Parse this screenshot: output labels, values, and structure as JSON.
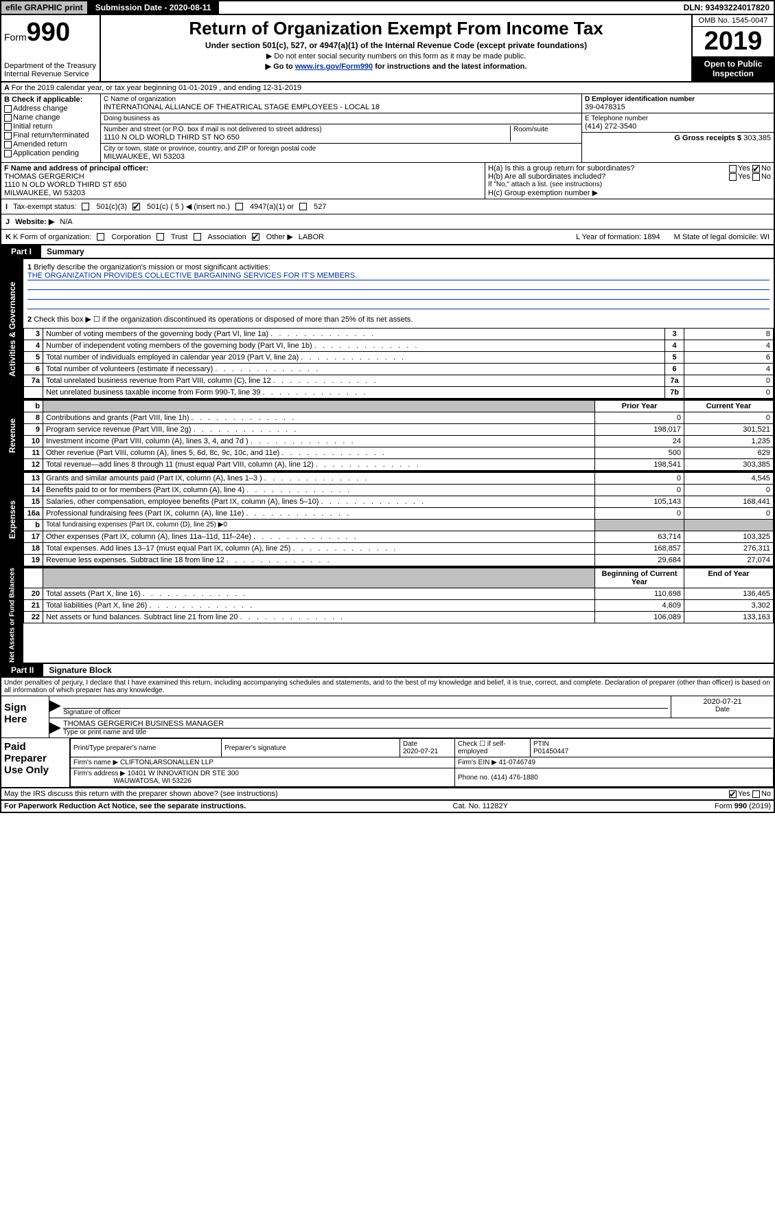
{
  "topBar": {
    "efile": "efile GRAPHIC print",
    "subLabel": "Submission Date - 2020-08-11",
    "dln": "DLN: 93493224017820"
  },
  "header": {
    "formLabel": "Form",
    "formNum": "990",
    "dept1": "Department of the Treasury",
    "dept2": "Internal Revenue Service",
    "title": "Return of Organization Exempt From Income Tax",
    "sub1": "Under section 501(c), 527, or 4947(a)(1) of the Internal Revenue Code (except private foundations)",
    "sub2": "▶ Do not enter social security numbers on this form as it may be made public.",
    "sub3a": "▶ Go to ",
    "sub3link": "www.irs.gov/Form990",
    "sub3b": " for instructions and the latest information.",
    "omb": "OMB No. 1545-0047",
    "year": "2019",
    "open": "Open to Public Inspection"
  },
  "periodA": "For the 2019 calendar year, or tax year beginning 01-01-2019   , and ending 12-31-2019",
  "checkB": {
    "header": "B Check if applicable:",
    "items": [
      "Address change",
      "Name change",
      "Initial return",
      "Final return/terminated",
      "Amended return",
      "Application pending"
    ]
  },
  "blockC": {
    "nameLabel": "C Name of organization",
    "name": "INTERNATIONAL ALLIANCE OF THEATRICAL STAGE EMPLOYEES - LOCAL 18",
    "dbaLabel": "Doing business as",
    "dba": "",
    "addrLabel": "Number and street (or P.O. box if mail is not delivered to street address)",
    "roomLabel": "Room/suite",
    "addr": "1110 N OLD WORLD THIRD ST NO 650",
    "cityLabel": "City or town, state or province, country, and ZIP or foreign postal code",
    "city": "MILWAUKEE, WI  53203"
  },
  "blockD": {
    "label": "D Employer identification number",
    "val": "39-0478315"
  },
  "blockE": {
    "label": "E Telephone number",
    "val": "(414) 272-3540"
  },
  "blockG": {
    "label": "G Gross receipts $",
    "val": "303,385"
  },
  "blockF": {
    "label": "F  Name and address of principal officer:",
    "name": "THOMAS GERGERICH",
    "addr1": "1110 N OLD WORLD THIRD ST 650",
    "addr2": "MILWAUKEE, WI  53203"
  },
  "blockH": {
    "ha": "H(a)  Is this a group return for subordinates?",
    "hb": "H(b)  Are all subordinates included?",
    "hbNote": "If \"No,\" attach a list. (see instructions)",
    "hc": "H(c)  Group exemption number ▶"
  },
  "taxI": {
    "label": "Tax-exempt status:",
    "c3": "501(c)(3)",
    "c5": "501(c) ( 5 ) ◀ (insert no.)",
    "a1": "4947(a)(1) or",
    "s527": "527"
  },
  "webJ": {
    "label": "Website: ▶",
    "val": "N/A"
  },
  "korg": {
    "label": "K Form of organization:",
    "opts": [
      "Corporation",
      "Trust",
      "Association",
      "Other ▶"
    ],
    "other": "LABOR",
    "L": "L Year of formation: 1894",
    "M": "M State of legal domicile: WI"
  },
  "part1": {
    "label": "Part I",
    "title": "Summary"
  },
  "gov": {
    "l1": "Briefly describe the organization's mission or most significant activities:",
    "mission": "THE ORGANIZATION PROVIDES COLLECTIVE BARGAINING SERVICES FOR IT'S MEMBERS.",
    "l2": "Check this box ▶ ☐  if the organization discontinued its operations or disposed of more than 25% of its net assets.",
    "rows": [
      {
        "n": "3",
        "d": "Number of voting members of the governing body (Part VI, line 1a)",
        "lbl": "3",
        "v": "8"
      },
      {
        "n": "4",
        "d": "Number of independent voting members of the governing body (Part VI, line 1b)",
        "lbl": "4",
        "v": "4"
      },
      {
        "n": "5",
        "d": "Total number of individuals employed in calendar year 2019 (Part V, line 2a)",
        "lbl": "5",
        "v": "6"
      },
      {
        "n": "6",
        "d": "Total number of volunteers (estimate if necessary)",
        "lbl": "6",
        "v": "4"
      },
      {
        "n": "7a",
        "d": "Total unrelated business revenue from Part VIII, column (C), line 12",
        "lbl": "7a",
        "v": "0"
      },
      {
        "n": "",
        "d": "Net unrelated business taxable income from Form 990-T, line 39",
        "lbl": "7b",
        "v": "0"
      }
    ]
  },
  "revHdr": {
    "b": "b",
    "prior": "Prior Year",
    "curr": "Current Year"
  },
  "revenue": [
    {
      "n": "8",
      "d": "Contributions and grants (Part VIII, line 1h)",
      "p": "0",
      "c": "0"
    },
    {
      "n": "9",
      "d": "Program service revenue (Part VIII, line 2g)",
      "p": "198,017",
      "c": "301,521"
    },
    {
      "n": "10",
      "d": "Investment income (Part VIII, column (A), lines 3, 4, and 7d )",
      "p": "24",
      "c": "1,235"
    },
    {
      "n": "11",
      "d": "Other revenue (Part VIII, column (A), lines 5, 6d, 8c, 9c, 10c, and 11e)",
      "p": "500",
      "c": "629"
    },
    {
      "n": "12",
      "d": "Total revenue—add lines 8 through 11 (must equal Part VIII, column (A), line 12)",
      "p": "198,541",
      "c": "303,385"
    }
  ],
  "expenses": [
    {
      "n": "13",
      "d": "Grants and similar amounts paid (Part IX, column (A), lines 1–3 )",
      "p": "0",
      "c": "4,545"
    },
    {
      "n": "14",
      "d": "Benefits paid to or for members (Part IX, column (A), line 4)",
      "p": "0",
      "c": "0"
    },
    {
      "n": "15",
      "d": "Salaries, other compensation, employee benefits (Part IX, column (A), lines 5–10)",
      "p": "105,143",
      "c": "168,441"
    },
    {
      "n": "16a",
      "d": "Professional fundraising fees (Part IX, column (A), line 11e)",
      "p": "0",
      "c": "0"
    },
    {
      "n": "b",
      "d": "Total fundraising expenses (Part IX, column (D), line 25) ▶0",
      "p": "",
      "c": "",
      "grey": true
    },
    {
      "n": "17",
      "d": "Other expenses (Part IX, column (A), lines 11a–11d, 11f–24e)",
      "p": "63,714",
      "c": "103,325"
    },
    {
      "n": "18",
      "d": "Total expenses. Add lines 13–17 (must equal Part IX, column (A), line 25)",
      "p": "168,857",
      "c": "276,311"
    },
    {
      "n": "19",
      "d": "Revenue less expenses. Subtract line 18 from line 12",
      "p": "29,684",
      "c": "27,074"
    }
  ],
  "netHdr": {
    "beg": "Beginning of Current Year",
    "end": "End of Year"
  },
  "net": [
    {
      "n": "20",
      "d": "Total assets (Part X, line 16)",
      "p": "110,698",
      "c": "136,465"
    },
    {
      "n": "21",
      "d": "Total liabilities (Part X, line 26)",
      "p": "4,609",
      "c": "3,302"
    },
    {
      "n": "22",
      "d": "Net assets or fund balances. Subtract line 21 from line 20",
      "p": "106,089",
      "c": "133,163"
    }
  ],
  "part2": {
    "label": "Part II",
    "title": "Signature Block"
  },
  "sig": {
    "perjury": "Under penalties of perjury, I declare that I have examined this return, including accompanying schedules and statements, and to the best of my knowledge and belief, it is true, correct, and complete. Declaration of preparer (other than officer) is based on all information of which preparer has any knowledge.",
    "signHere": "Sign Here",
    "sigOfficer": "Signature of officer",
    "date1": "2020-07-21",
    "dateLabel": "Date",
    "officerName": "THOMAS GERGERICH  BUSINESS MANAGER",
    "typeName": "Type or print name and title",
    "paidLabel": "Paid Preparer Use Only",
    "prepName": "Print/Type preparer's name",
    "prepSig": "Preparer's signature",
    "date2": "2020-07-21",
    "checkSelf": "Check ☐ if self-employed",
    "ptinLabel": "PTIN",
    "ptin": "P01450447",
    "firmName": "Firm's name    ▶",
    "firmNameVal": "CLIFTONLARSONALLEN LLP",
    "firmEIN": "Firm's EIN ▶",
    "firmEINVal": "41-0746749",
    "firmAddr": "Firm's address ▶",
    "firmAddrVal1": "10401 W INNOVATION DR STE 300",
    "firmAddrVal2": "WAUWATOSA, WI  53226",
    "phone": "Phone no. (414) 476-1880"
  },
  "footer": {
    "discuss": "May the IRS discuss this return with the preparer shown above? (see instructions)",
    "yes": "Yes",
    "no": "No",
    "paperwork": "For Paperwork Reduction Act Notice, see the separate instructions.",
    "cat": "Cat. No. 11282Y",
    "form": "Form 990 (2019)"
  },
  "sideTabs": {
    "gov": "Activities & Governance",
    "rev": "Revenue",
    "exp": "Expenses",
    "net": "Net Assets or Fund Balances"
  }
}
